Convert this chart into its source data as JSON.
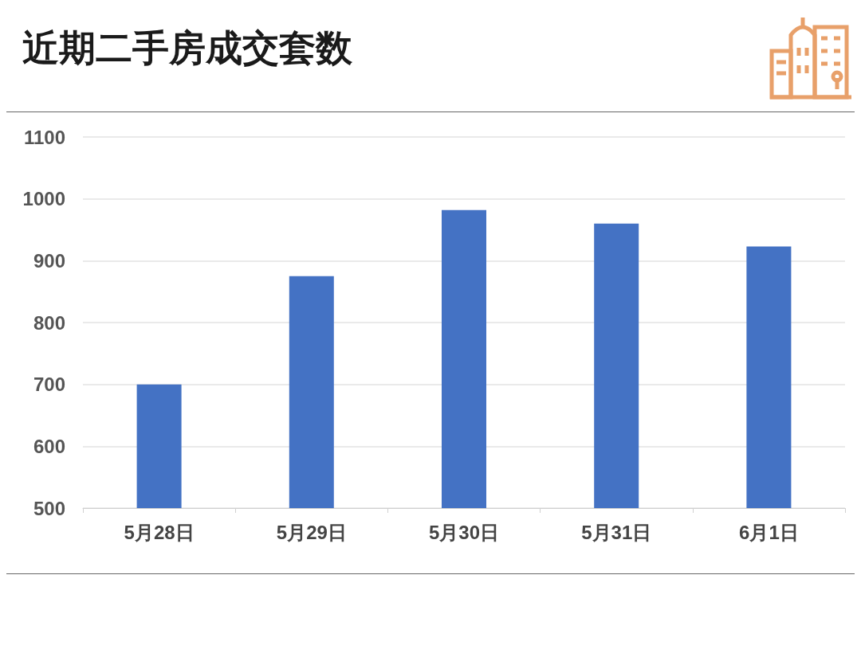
{
  "chart_data": {
    "type": "bar",
    "title": "近期二手房成交套数",
    "categories": [
      "5月28日",
      "5月29日",
      "5月30日",
      "5月31日",
      "6月1日"
    ],
    "values": [
      700,
      875,
      982,
      960,
      923
    ],
    "color": "#4472c4",
    "ylim": [
      500,
      1100
    ],
    "yticks": [
      500,
      600,
      700,
      800,
      900,
      1000,
      1100
    ],
    "grid": "y"
  }
}
